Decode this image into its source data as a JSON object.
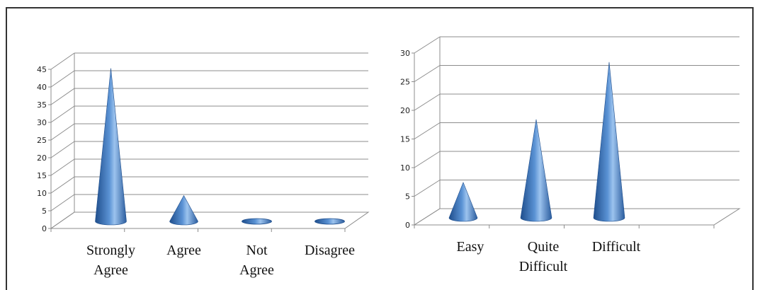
{
  "colors": {
    "cone_dark": "#1f4e8c",
    "cone_mid": "#4f86c6",
    "cone_light": "#9cc3ee",
    "grid": "#8c8c8c"
  },
  "chart_data": [
    {
      "type": "bar",
      "title": "",
      "xlabel": "",
      "ylabel": "",
      "categories": [
        [
          "Strongly",
          "Agree"
        ],
        [
          "Agree"
        ],
        [
          "Not",
          "Agree"
        ],
        [
          "Disagree"
        ]
      ],
      "values": [
        43,
        7,
        0,
        0
      ],
      "ylim": [
        0,
        45
      ],
      "yticks": [
        0,
        5,
        10,
        15,
        20,
        25,
        30,
        35,
        40,
        45
      ],
      "grid": true,
      "style": "3d-cone"
    },
    {
      "type": "bar",
      "title": "",
      "xlabel": "",
      "ylabel": "",
      "categories": [
        [
          "Easy"
        ],
        [
          "Quite",
          "Difficult"
        ],
        [
          "Difficult"
        ]
      ],
      "values": [
        6,
        17,
        27
      ],
      "ylim": [
        0,
        30
      ],
      "yticks": [
        0,
        5,
        10,
        15,
        20,
        25,
        30
      ],
      "grid": true,
      "style": "3d-cone"
    }
  ]
}
